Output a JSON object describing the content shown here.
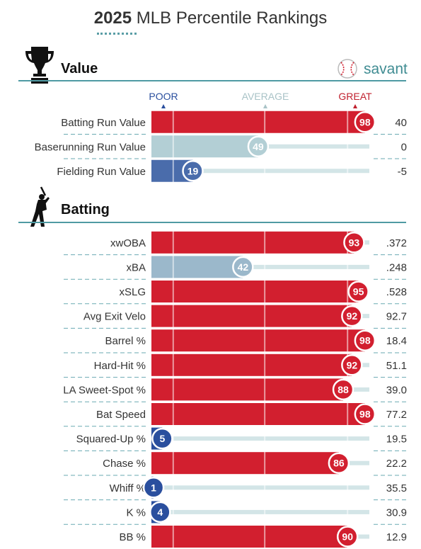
{
  "title": {
    "year": "2025",
    "rest": "MLB Percentile Rankings"
  },
  "brand": {
    "name": "savant"
  },
  "scale": {
    "poor": "POOR",
    "average": "AVERAGE",
    "great": "GREAT"
  },
  "colors": {
    "great_red": "#d21f2f",
    "average_gray": "#b7d2d6",
    "poor_blue": "#2a4f9e",
    "track": "#d3e5e7",
    "section_rule": "#4f9aa3",
    "dash": "#6aaab2"
  },
  "chart_data": [
    {
      "type": "bar",
      "section": "Value",
      "categories": [
        "Batting Run Value",
        "Baserunning Run Value",
        "Fielding Run Value"
      ],
      "percentiles": [
        98,
        49,
        19
      ],
      "stat_values": [
        "40",
        "0",
        "-5"
      ],
      "xlim": [
        0,
        100
      ]
    },
    {
      "type": "bar",
      "section": "Batting",
      "categories": [
        "xwOBA",
        "xBA",
        "xSLG",
        "Avg Exit Velo",
        "Barrel %",
        "Hard-Hit %",
        "LA Sweet-Spot %",
        "Bat Speed",
        "Squared-Up %",
        "Chase %",
        "Whiff %",
        "K %",
        "BB %"
      ],
      "percentiles": [
        93,
        42,
        95,
        92,
        98,
        92,
        88,
        98,
        5,
        86,
        1,
        4,
        90
      ],
      "stat_values": [
        ".372",
        ".248",
        ".528",
        "92.7",
        "18.4",
        "51.1",
        "39.0",
        "77.2",
        "19.5",
        "22.2",
        "35.5",
        "30.9",
        "12.9"
      ],
      "xlim": [
        0,
        100
      ]
    }
  ]
}
